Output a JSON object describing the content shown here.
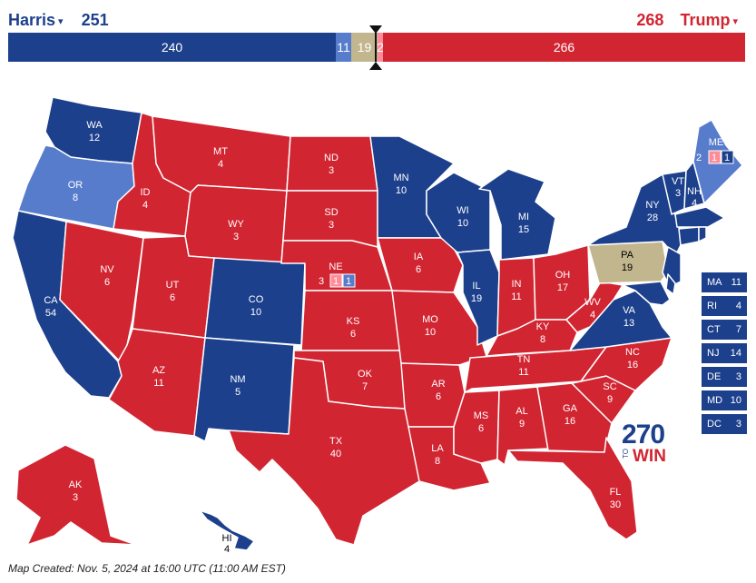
{
  "header": {
    "dem": {
      "name": "Harris",
      "total": "251"
    },
    "rep": {
      "name": "Trump",
      "total": "268"
    },
    "caret": "▾"
  },
  "bar": {
    "safe_dem": "240",
    "lean_dem": "11",
    "tossup": "19",
    "likely_rep": "2",
    "safe_rep": "266"
  },
  "colors": {
    "safe_dem": "#1c408c",
    "lean_dem": "#577ccc",
    "tossup": "#c2b68f",
    "likely_rep": "#ff8b98",
    "safe_rep": "#d22532"
  },
  "states": {
    "WA": {
      "abbr": "WA",
      "ev": "12"
    },
    "OR": {
      "abbr": "OR",
      "ev": "8"
    },
    "CA": {
      "abbr": "CA",
      "ev": "54"
    },
    "NV": {
      "abbr": "NV",
      "ev": "6"
    },
    "ID": {
      "abbr": "ID",
      "ev": "4"
    },
    "MT": {
      "abbr": "MT",
      "ev": "4"
    },
    "WY": {
      "abbr": "WY",
      "ev": "3"
    },
    "UT": {
      "abbr": "UT",
      "ev": "6"
    },
    "AZ": {
      "abbr": "AZ",
      "ev": "11"
    },
    "CO": {
      "abbr": "CO",
      "ev": "10"
    },
    "NM": {
      "abbr": "NM",
      "ev": "5"
    },
    "ND": {
      "abbr": "ND",
      "ev": "3"
    },
    "SD": {
      "abbr": "SD",
      "ev": "3"
    },
    "NE": {
      "abbr": "NE",
      "ev": "3",
      "d1": "1",
      "d2": "1"
    },
    "KS": {
      "abbr": "KS",
      "ev": "6"
    },
    "OK": {
      "abbr": "OK",
      "ev": "7"
    },
    "TX": {
      "abbr": "TX",
      "ev": "40"
    },
    "MN": {
      "abbr": "MN",
      "ev": "10"
    },
    "IA": {
      "abbr": "IA",
      "ev": "6"
    },
    "MO": {
      "abbr": "MO",
      "ev": "10"
    },
    "AR": {
      "abbr": "AR",
      "ev": "6"
    },
    "LA": {
      "abbr": "LA",
      "ev": "8"
    },
    "WI": {
      "abbr": "WI",
      "ev": "10"
    },
    "IL": {
      "abbr": "IL",
      "ev": "19"
    },
    "MI": {
      "abbr": "MI",
      "ev": "15"
    },
    "IN": {
      "abbr": "IN",
      "ev": "11"
    },
    "OH": {
      "abbr": "OH",
      "ev": "17"
    },
    "KY": {
      "abbr": "KY",
      "ev": "8"
    },
    "TN": {
      "abbr": "TN",
      "ev": "11"
    },
    "MS": {
      "abbr": "MS",
      "ev": "6"
    },
    "AL": {
      "abbr": "AL",
      "ev": "9"
    },
    "GA": {
      "abbr": "GA",
      "ev": "16"
    },
    "FL": {
      "abbr": "FL",
      "ev": "30"
    },
    "SC": {
      "abbr": "SC",
      "ev": "9"
    },
    "NC": {
      "abbr": "NC",
      "ev": "16"
    },
    "VA": {
      "abbr": "VA",
      "ev": "13"
    },
    "WV": {
      "abbr": "WV",
      "ev": "4"
    },
    "PA": {
      "abbr": "PA",
      "ev": "19"
    },
    "NY": {
      "abbr": "NY",
      "ev": "28"
    },
    "VT": {
      "abbr": "VT",
      "ev": "3"
    },
    "NH": {
      "abbr": "NH",
      "ev": "4"
    },
    "ME": {
      "abbr": "ME",
      "ev": "2",
      "d1": "1",
      "d2": "1"
    },
    "AK": {
      "abbr": "AK",
      "ev": "3"
    },
    "HI": {
      "abbr": "HI",
      "ev": "4"
    }
  },
  "small_states": [
    {
      "abbr": "MA",
      "ev": "11"
    },
    {
      "abbr": "RI",
      "ev": "4"
    },
    {
      "abbr": "CT",
      "ev": "7"
    },
    {
      "abbr": "NJ",
      "ev": "14"
    },
    {
      "abbr": "DE",
      "ev": "3"
    },
    {
      "abbr": "MD",
      "ev": "10"
    },
    {
      "abbr": "DC",
      "ev": "3"
    }
  ],
  "logo": {
    "number": "270",
    "to": "TO",
    "win": "WIN"
  },
  "footer": "Map Created: Nov. 5, 2024 at 16:00 UTC (11:00 AM EST)"
}
